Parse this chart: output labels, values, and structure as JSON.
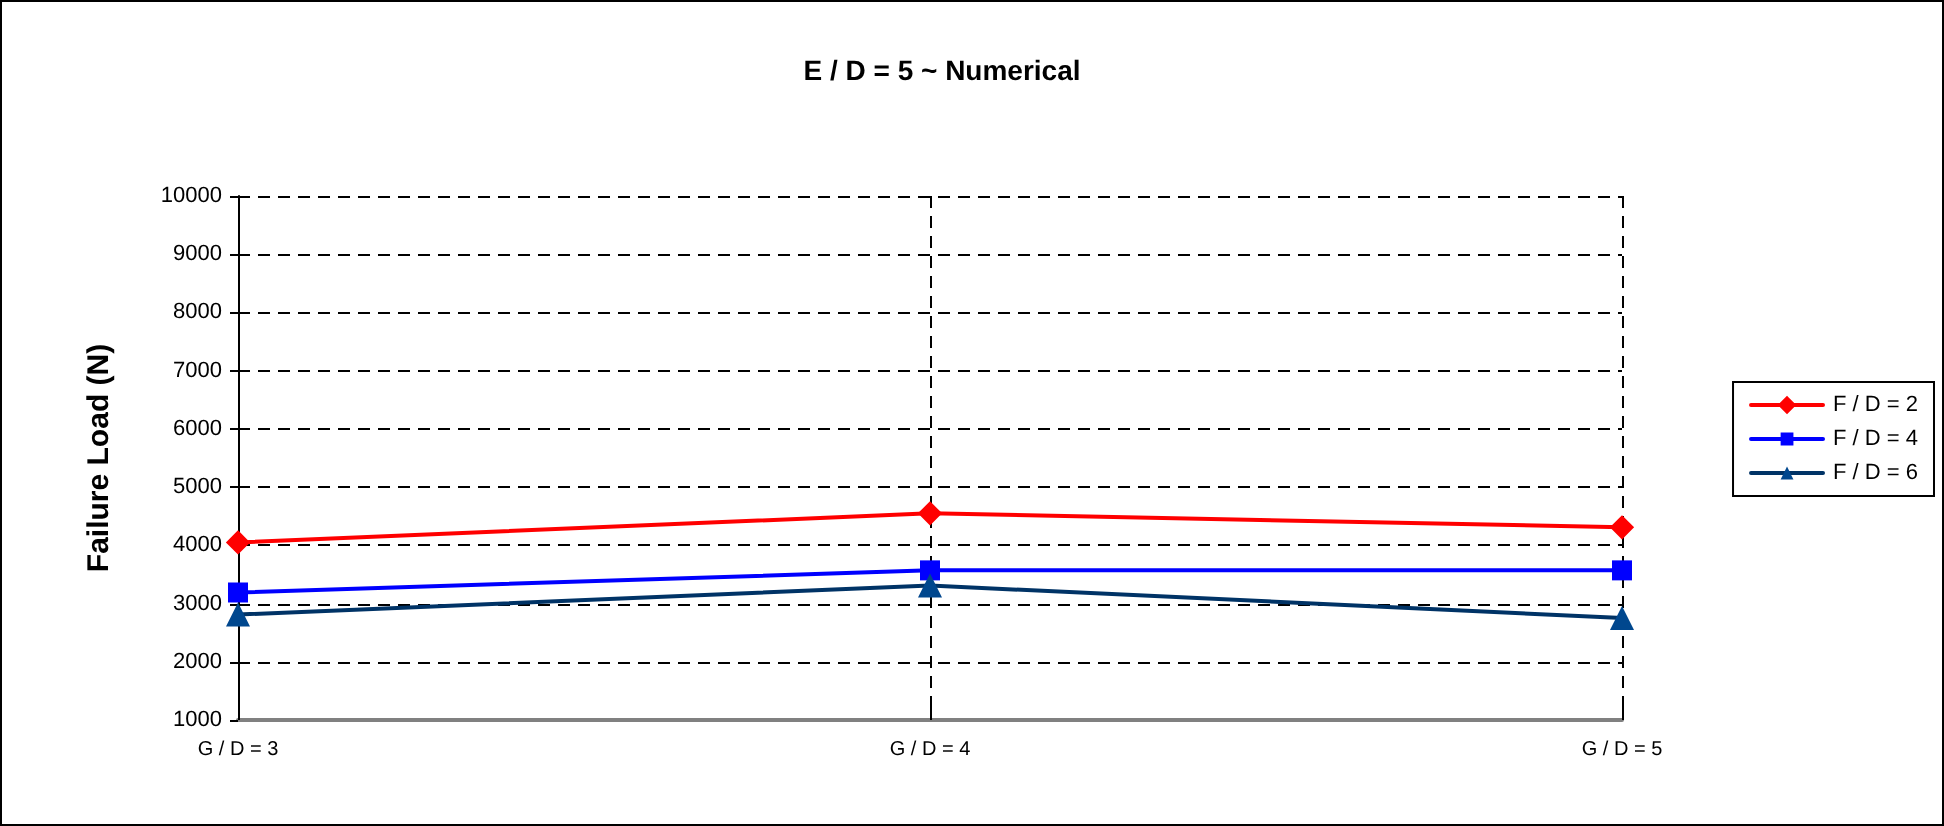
{
  "chart_data": {
    "type": "line",
    "title": "E / D = 5 ~ Numerical",
    "ylabel": "Failure Load (N)",
    "categories": [
      "G / D = 3",
      "G / D = 4",
      "G / D = 5"
    ],
    "series": [
      {
        "name": "F / D = 2",
        "color": "#ff0000",
        "marker": "diamond",
        "values": [
          4050,
          4550,
          4310
        ]
      },
      {
        "name": "F / D = 4",
        "color": "#0000ff",
        "marker": "square",
        "values": [
          3190,
          3570,
          3570
        ]
      },
      {
        "name": "F / D = 6",
        "color": "#003366",
        "marker": "triangle",
        "values": [
          2810,
          3310,
          2750
        ]
      }
    ],
    "ylim": [
      1000,
      10000
    ],
    "yticks": [
      1000,
      2000,
      3000,
      4000,
      5000,
      6000,
      7000,
      8000,
      9000,
      10000
    ],
    "grid": true,
    "legend": "right",
    "line_style": "solid"
  }
}
